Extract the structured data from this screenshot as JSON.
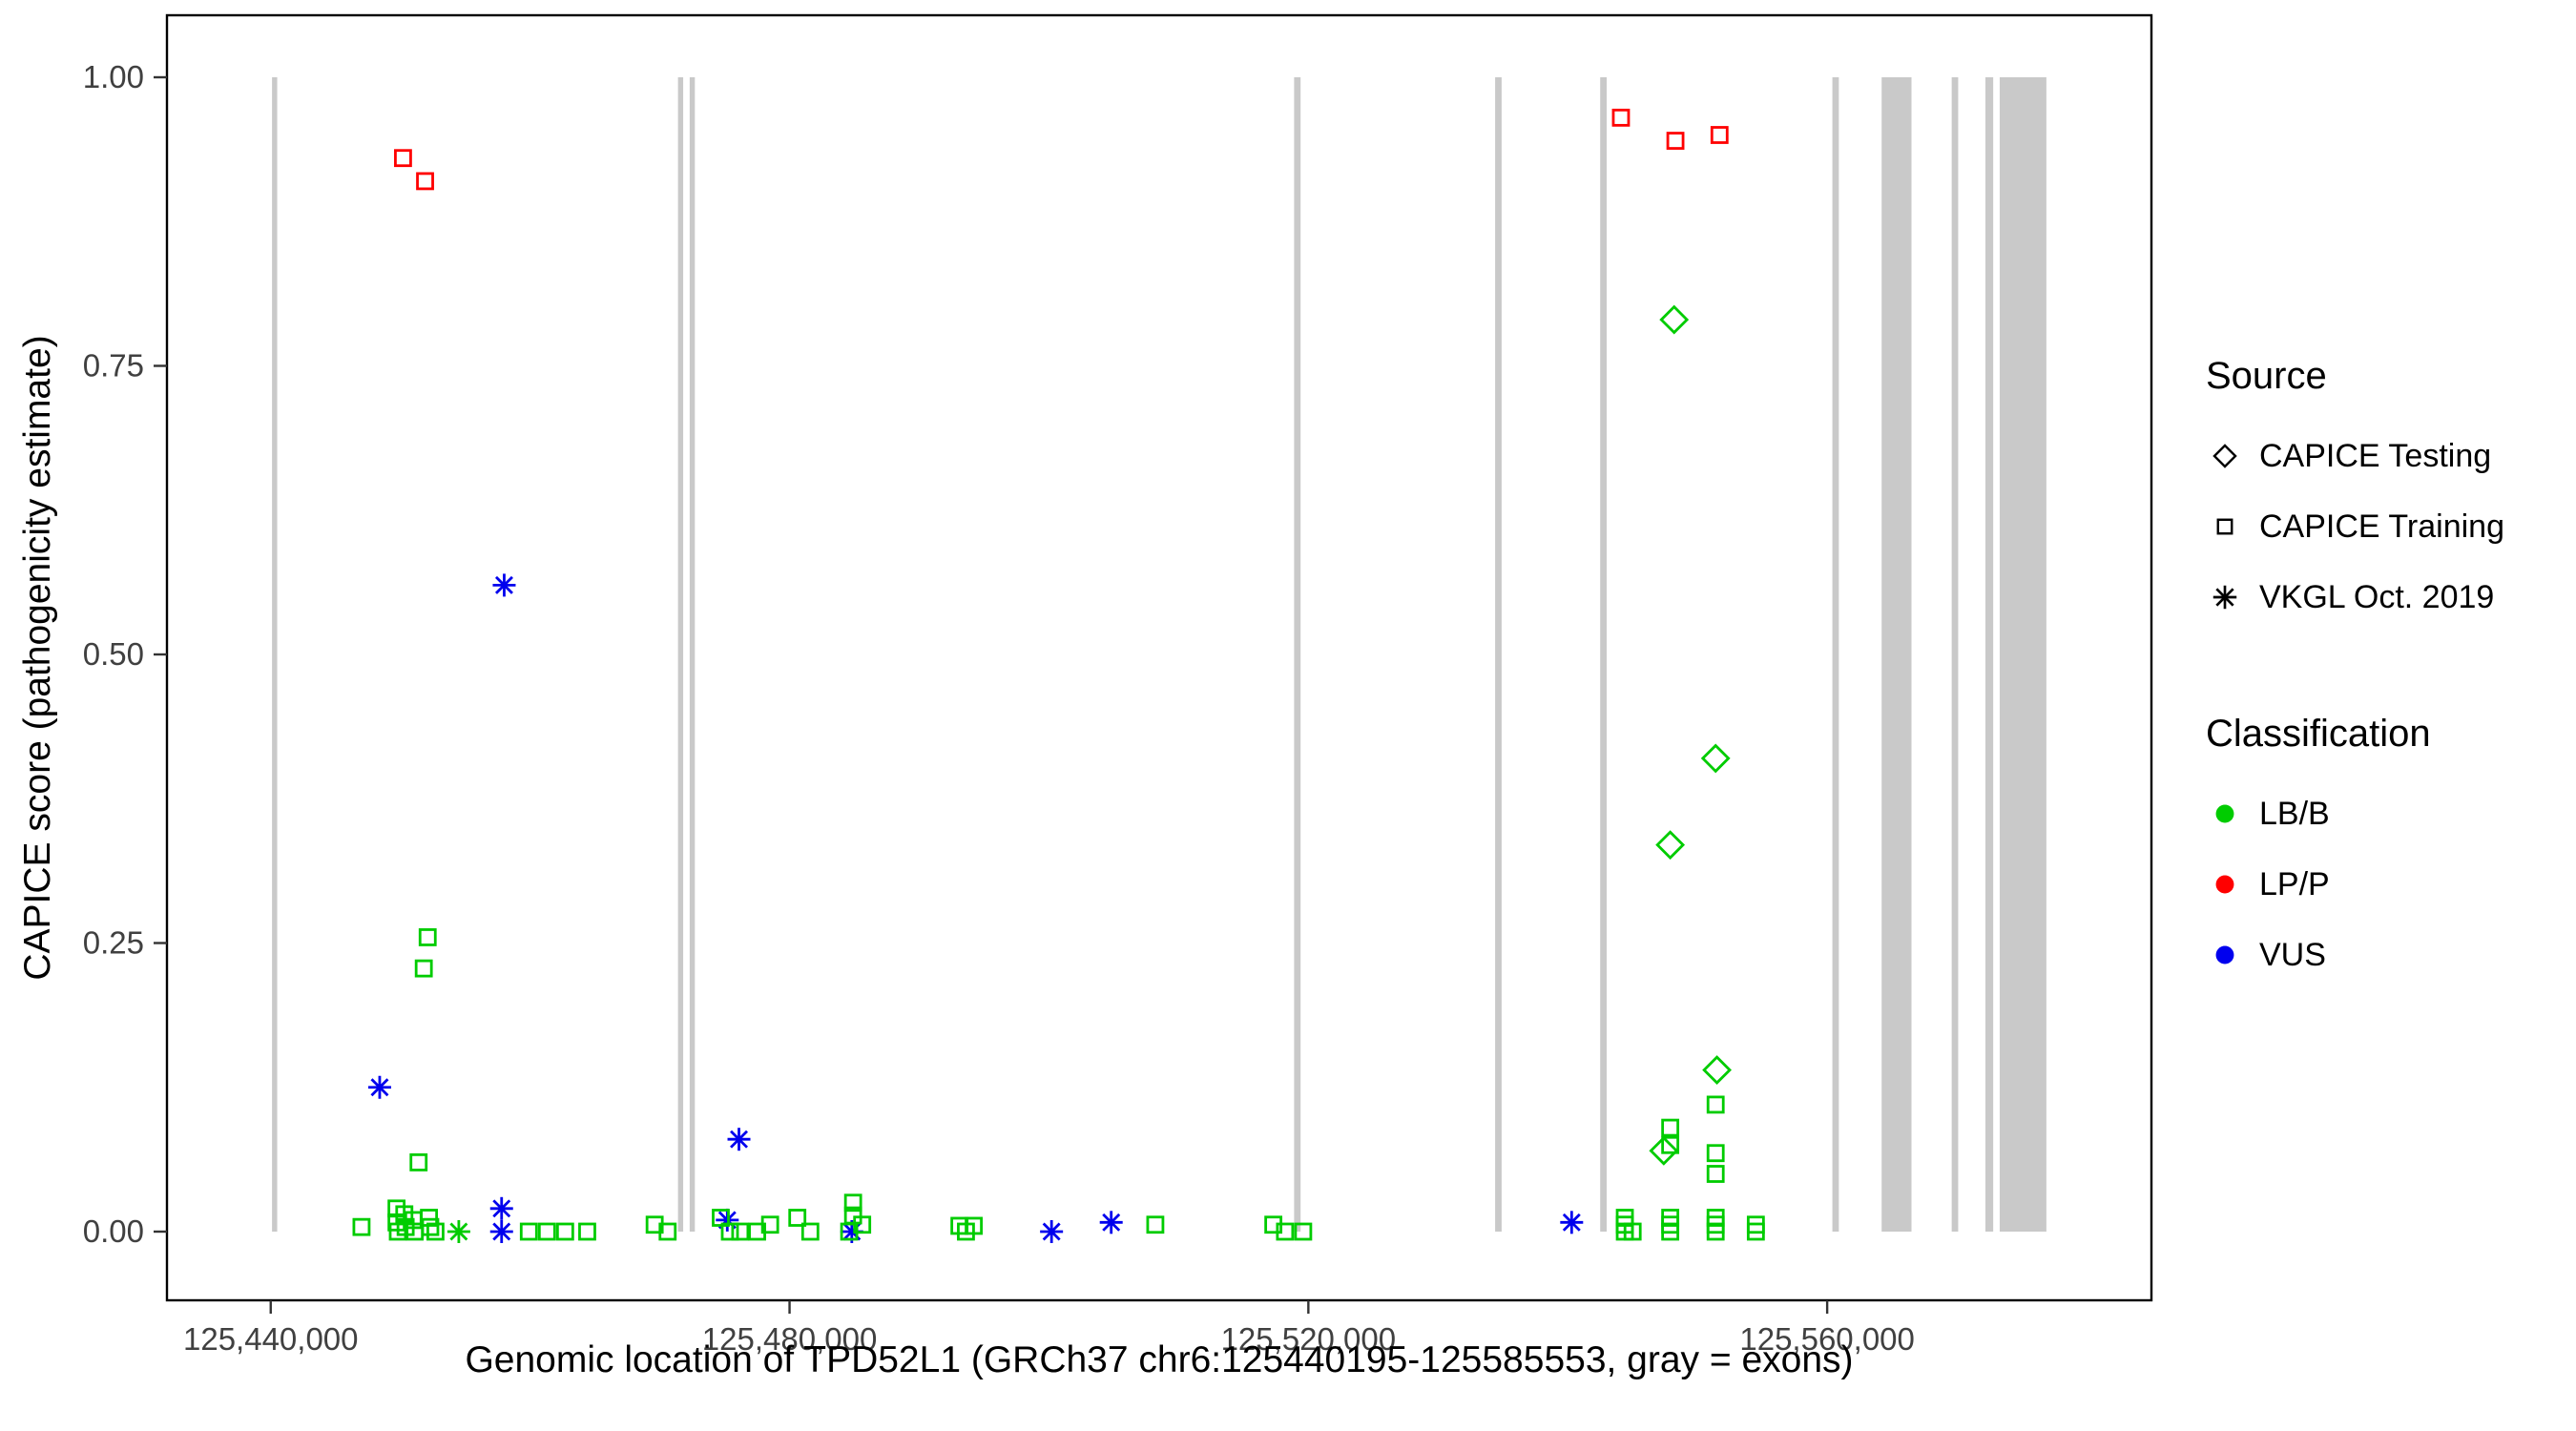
{
  "chart_data": {
    "type": "scatter",
    "title": "",
    "xlabel": "Genomic location of TPD52L1 (GRCh37 chr6:125440195-125585553, gray = exons)",
    "ylabel": "CAPICE score (pathogenicity estimate)",
    "x_domain": [
      125432000,
      125585000
    ],
    "y_domain": [
      -0.04,
      1.04
    ],
    "grid": "off",
    "x_ticks": [
      {
        "value": 125440000,
        "label": "125,440,000"
      },
      {
        "value": 125480000,
        "label": "125,480,000"
      },
      {
        "value": 125520000,
        "label": "125,520,000"
      },
      {
        "value": 125560000,
        "label": "125,560,000"
      }
    ],
    "y_ticks": [
      {
        "value": 0.0,
        "label": "0.00"
      },
      {
        "value": 0.25,
        "label": "0.25"
      },
      {
        "value": 0.5,
        "label": "0.50"
      },
      {
        "value": 0.75,
        "label": "0.75"
      },
      {
        "value": 1.0,
        "label": "1.00"
      }
    ],
    "exon_color": "#C9C9C9",
    "exons": [
      [
        125440100,
        125440500
      ],
      [
        125471400,
        125471800
      ],
      [
        125472300,
        125472700
      ],
      [
        125518900,
        125519400
      ],
      [
        125534400,
        125534900
      ],
      [
        125542500,
        125543000
      ],
      [
        125560400,
        125560900
      ],
      [
        125564200,
        125566500
      ],
      [
        125569600,
        125570100
      ],
      [
        125572200,
        125572800
      ],
      [
        125573300,
        125576900
      ]
    ],
    "classification_colors": {
      "LB/B": "#00CC00",
      "LP/P": "#FF0000",
      "VUS": "#0000EE"
    },
    "source_shapes": {
      "CAPICE Testing": "diamond",
      "CAPICE Training": "square",
      "VKGL Oct. 2019": "asterisk"
    },
    "point_fields": [
      "x",
      "y",
      "source",
      "classification"
    ],
    "points": [
      [
        125450200,
        0.93,
        "CAPICE Training",
        "LP/P"
      ],
      [
        125451900,
        0.91,
        "CAPICE Training",
        "LP/P"
      ],
      [
        125544100,
        0.965,
        "CAPICE Training",
        "LP/P"
      ],
      [
        125548300,
        0.945,
        "CAPICE Training",
        "LP/P"
      ],
      [
        125551700,
        0.95,
        "CAPICE Training",
        "LP/P"
      ],
      [
        125548200,
        0.79,
        "CAPICE Testing",
        "LB/B"
      ],
      [
        125551400,
        0.41,
        "CAPICE Testing",
        "LB/B"
      ],
      [
        125547900,
        0.335,
        "CAPICE Testing",
        "LB/B"
      ],
      [
        125551500,
        0.14,
        "CAPICE Testing",
        "LB/B"
      ],
      [
        125547400,
        0.07,
        "CAPICE Testing",
        "LB/B"
      ],
      [
        125458000,
        0.56,
        "VKGL Oct. 2019",
        "VUS"
      ],
      [
        125448400,
        0.125,
        "VKGL Oct. 2019",
        "VUS"
      ],
      [
        125476100,
        0.08,
        "VKGL Oct. 2019",
        "VUS"
      ],
      [
        125457800,
        0.02,
        "VKGL Oct. 2019",
        "VUS"
      ],
      [
        125457800,
        0.0,
        "VKGL Oct. 2019",
        "VUS"
      ],
      [
        125475200,
        0.01,
        "VKGL Oct. 2019",
        "VUS"
      ],
      [
        125484800,
        0.0,
        "VKGL Oct. 2019",
        "VUS"
      ],
      [
        125500200,
        0.0,
        "VKGL Oct. 2019",
        "VUS"
      ],
      [
        125504800,
        0.008,
        "VKGL Oct. 2019",
        "VUS"
      ],
      [
        125540300,
        0.008,
        "VKGL Oct. 2019",
        "VUS"
      ],
      [
        125454500,
        0.0,
        "VKGL Oct. 2019",
        "LB/B"
      ],
      [
        125447000,
        0.004,
        "CAPICE Training",
        "LB/B"
      ],
      [
        125449700,
        0.02,
        "CAPICE Training",
        "LB/B"
      ],
      [
        125449700,
        0.008,
        "CAPICE Training",
        "LB/B"
      ],
      [
        125449800,
        0.0,
        "CAPICE Training",
        "LB/B"
      ],
      [
        125450300,
        0.015,
        "CAPICE Training",
        "LB/B"
      ],
      [
        125450400,
        0.004,
        "CAPICE Training",
        "LB/B"
      ],
      [
        125451000,
        0.01,
        "CAPICE Training",
        "LB/B"
      ],
      [
        125451100,
        0.0,
        "CAPICE Training",
        "LB/B"
      ],
      [
        125451400,
        0.06,
        "CAPICE Training",
        "LB/B"
      ],
      [
        125451800,
        0.228,
        "CAPICE Training",
        "LB/B"
      ],
      [
        125452100,
        0.255,
        "CAPICE Training",
        "LB/B"
      ],
      [
        125452200,
        0.012,
        "CAPICE Training",
        "LB/B"
      ],
      [
        125452300,
        0.004,
        "CAPICE Training",
        "LB/B"
      ],
      [
        125452700,
        0.0,
        "CAPICE Training",
        "LB/B"
      ],
      [
        125459900,
        0.0,
        "CAPICE Training",
        "LB/B"
      ],
      [
        125461300,
        0.0,
        "CAPICE Training",
        "LB/B"
      ],
      [
        125462700,
        0.0,
        "CAPICE Training",
        "LB/B"
      ],
      [
        125464400,
        0.0,
        "CAPICE Training",
        "LB/B"
      ],
      [
        125469600,
        0.006,
        "CAPICE Training",
        "LB/B"
      ],
      [
        125470600,
        0.0,
        "CAPICE Training",
        "LB/B"
      ],
      [
        125474700,
        0.012,
        "CAPICE Training",
        "LB/B"
      ],
      [
        125475400,
        0.0,
        "CAPICE Training",
        "LB/B"
      ],
      [
        125476200,
        0.0,
        "CAPICE Training",
        "LB/B"
      ],
      [
        125477500,
        0.0,
        "CAPICE Training",
        "LB/B"
      ],
      [
        125478500,
        0.006,
        "CAPICE Training",
        "LB/B"
      ],
      [
        125480600,
        0.012,
        "CAPICE Training",
        "LB/B"
      ],
      [
        125481600,
        0.0,
        "CAPICE Training",
        "LB/B"
      ],
      [
        125484900,
        0.025,
        "CAPICE Training",
        "LB/B"
      ],
      [
        125484900,
        0.014,
        "CAPICE Training",
        "LB/B"
      ],
      [
        125484600,
        0.0,
        "CAPICE Training",
        "LB/B"
      ],
      [
        125485600,
        0.006,
        "CAPICE Training",
        "LB/B"
      ],
      [
        125493100,
        0.005,
        "CAPICE Training",
        "LB/B"
      ],
      [
        125494200,
        0.005,
        "CAPICE Training",
        "LB/B"
      ],
      [
        125493600,
        0.0,
        "CAPICE Training",
        "LB/B"
      ],
      [
        125508200,
        0.006,
        "CAPICE Training",
        "LB/B"
      ],
      [
        125517300,
        0.006,
        "CAPICE Training",
        "LB/B"
      ],
      [
        125518200,
        0.0,
        "CAPICE Training",
        "LB/B"
      ],
      [
        125519600,
        0.0,
        "CAPICE Training",
        "LB/B"
      ],
      [
        125544400,
        0.012,
        "CAPICE Training",
        "LB/B"
      ],
      [
        125544400,
        0.006,
        "CAPICE Training",
        "LB/B"
      ],
      [
        125544400,
        0.0,
        "CAPICE Training",
        "LB/B"
      ],
      [
        125545000,
        0.0,
        "CAPICE Training",
        "LB/B"
      ],
      [
        125547900,
        0.09,
        "CAPICE Training",
        "LB/B"
      ],
      [
        125547900,
        0.075,
        "CAPICE Training",
        "LB/B"
      ],
      [
        125547900,
        0.012,
        "CAPICE Training",
        "LB/B"
      ],
      [
        125547900,
        0.006,
        "CAPICE Training",
        "LB/B"
      ],
      [
        125547900,
        0.0,
        "CAPICE Training",
        "LB/B"
      ],
      [
        125551400,
        0.11,
        "CAPICE Training",
        "LB/B"
      ],
      [
        125551400,
        0.068,
        "CAPICE Training",
        "LB/B"
      ],
      [
        125551400,
        0.05,
        "CAPICE Training",
        "LB/B"
      ],
      [
        125551400,
        0.012,
        "CAPICE Training",
        "LB/B"
      ],
      [
        125551400,
        0.006,
        "CAPICE Training",
        "LB/B"
      ],
      [
        125551400,
        0.0,
        "CAPICE Training",
        "LB/B"
      ],
      [
        125554500,
        0.006,
        "CAPICE Training",
        "LB/B"
      ],
      [
        125554500,
        0.0,
        "CAPICE Training",
        "LB/B"
      ]
    ]
  },
  "axes": {
    "x_title": "Genomic location of TPD52L1 (GRCh37 chr6:125440195-125585553, gray = exons)",
    "y_title": "CAPICE score (pathogenicity estimate)"
  },
  "legend": {
    "source_title": "Source",
    "source_items": [
      {
        "label": "CAPICE Testing",
        "shape": "diamond"
      },
      {
        "label": "CAPICE Training",
        "shape": "square"
      },
      {
        "label": "VKGL Oct. 2019",
        "shape": "asterisk"
      }
    ],
    "classification_title": "Classification",
    "classification_items": [
      {
        "label": "LB/B",
        "color": "#00CC00"
      },
      {
        "label": "LP/P",
        "color": "#FF0000"
      },
      {
        "label": "VUS",
        "color": "#0000EE"
      }
    ]
  }
}
